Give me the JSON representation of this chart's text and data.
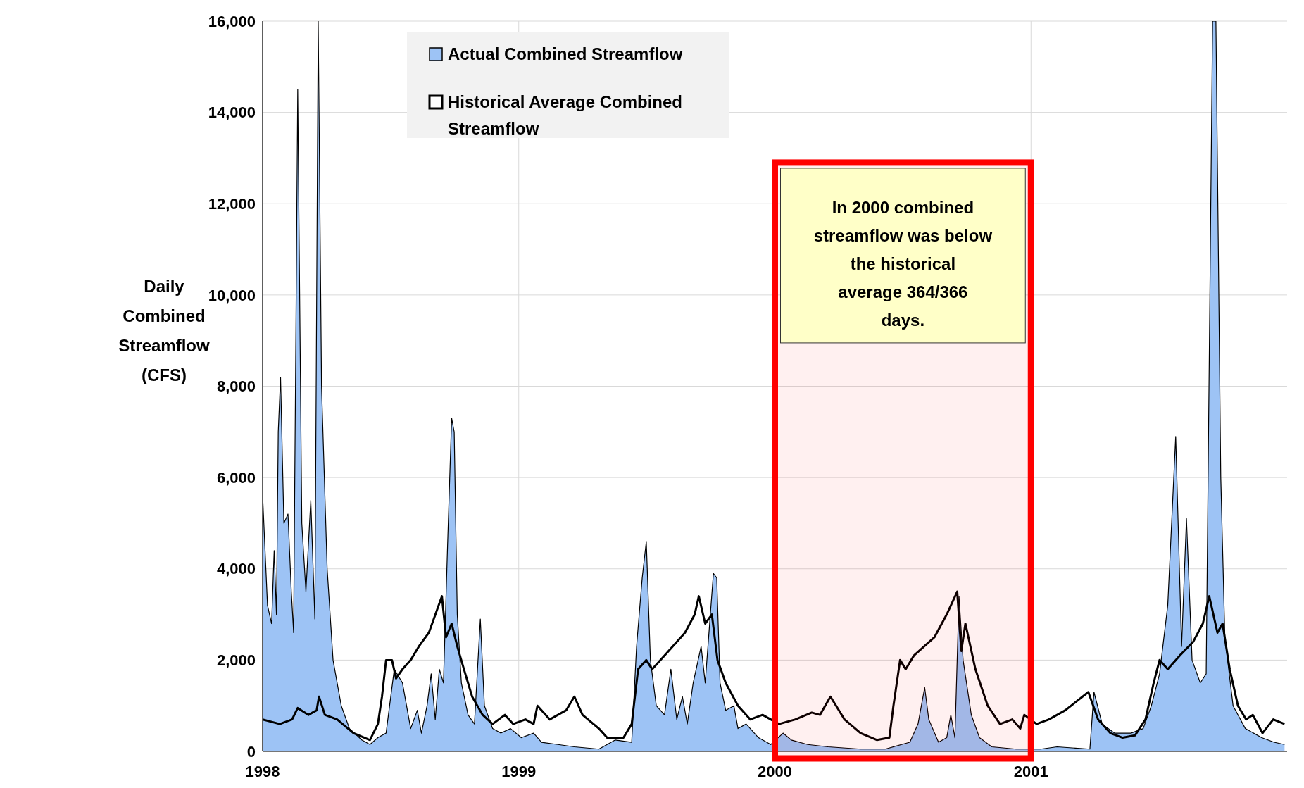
{
  "chart_data": {
    "type": "area",
    "ylabel": "Daily Combined Streamflow (CFS)",
    "xlim": [
      1998,
      2002
    ],
    "xticks": [
      1998,
      1999,
      2000,
      2001
    ],
    "ylim": [
      0,
      16000
    ],
    "yticks": [
      {
        "value": 0,
        "label": "0"
      },
      {
        "value": 2000,
        "label": "2,000"
      },
      {
        "value": 4000,
        "label": "4,000"
      },
      {
        "value": 6000,
        "label": "6,000"
      },
      {
        "value": 8000,
        "label": "8,000"
      },
      {
        "value": 10000,
        "label": "10,000"
      },
      {
        "value": 12000,
        "label": "12,000"
      },
      {
        "value": 14000,
        "label": "14,000"
      },
      {
        "value": 16000,
        "label": "16,000"
      }
    ],
    "grid": true,
    "legend": "top left",
    "series": [
      {
        "name": "Actual Combined Streamflow",
        "color": "#9dc3f5",
        "x": [
          1998.0,
          1998.019,
          1998.035,
          1998.045,
          1998.054,
          1998.061,
          1998.07,
          1998.083,
          1998.099,
          1998.112,
          1998.121,
          1998.137,
          1998.153,
          1998.169,
          1998.188,
          1998.204,
          1998.217,
          1998.23,
          1998.252,
          1998.275,
          1998.307,
          1998.339,
          1998.387,
          1998.419,
          1998.45,
          1998.482,
          1998.514,
          1998.546,
          1998.578,
          1998.604,
          1998.62,
          1998.642,
          1998.658,
          1998.674,
          1998.69,
          1998.706,
          1998.722,
          1998.738,
          1998.748,
          1998.76,
          1998.776,
          1998.802,
          1998.827,
          1998.85,
          1998.866,
          1998.898,
          1998.93,
          1998.968,
          1999.01,
          1999.058,
          1999.089,
          1999.153,
          1999.217,
          1999.313,
          1999.377,
          1999.441,
          1999.46,
          1999.482,
          1999.498,
          1999.514,
          1999.537,
          1999.569,
          1999.594,
          1999.617,
          1999.639,
          1999.658,
          1999.681,
          1999.712,
          1999.728,
          1999.76,
          1999.773,
          1999.786,
          1999.808,
          1999.84,
          1999.856,
          1999.888,
          1999.936,
          1999.984,
          2000.032,
          2000.064,
          2000.128,
          2000.208,
          2000.335,
          2000.431,
          2000.527,
          2000.559,
          2000.585,
          2000.601,
          2000.639,
          2000.671,
          2000.687,
          2000.703,
          2000.719,
          2000.735,
          2000.767,
          2000.799,
          2000.847,
          2000.942,
          2001.038,
          2001.102,
          2001.23,
          2001.246,
          2001.278,
          2001.326,
          2001.39,
          2001.438,
          2001.47,
          2001.502,
          2001.534,
          2001.565,
          2001.588,
          2001.607,
          2001.629,
          2001.661,
          2001.684,
          2001.709,
          2001.722,
          2001.741,
          2001.757,
          2001.789,
          2001.837,
          2001.901,
          2001.949,
          2001.99
        ],
        "values": [
          5600,
          3200,
          2800,
          4400,
          3000,
          7000,
          8200,
          5000,
          5200,
          3500,
          2600,
          14500,
          5000,
          3500,
          5500,
          2900,
          16000,
          8000,
          4000,
          2000,
          1000,
          500,
          250,
          150,
          300,
          400,
          1800,
          1500,
          500,
          900,
          400,
          1000,
          1700,
          700,
          1800,
          1500,
          4500,
          7300,
          7000,
          3000,
          1500,
          800,
          600,
          2900,
          1000,
          500,
          400,
          500,
          300,
          400,
          200,
          150,
          100,
          50,
          250,
          200,
          2300,
          3800,
          4600,
          2000,
          1000,
          800,
          1800,
          700,
          1200,
          600,
          1500,
          2300,
          1500,
          3900,
          3800,
          1500,
          900,
          1000,
          500,
          600,
          300,
          150,
          400,
          250,
          150,
          100,
          50,
          50,
          200,
          600,
          1400,
          700,
          200,
          300,
          800,
          300,
          3400,
          2000,
          800,
          300,
          100,
          50,
          50,
          100,
          50,
          1300,
          600,
          400,
          400,
          500,
          1000,
          1700,
          3200,
          6900,
          2300,
          5100,
          2000,
          1500,
          1700,
          16000,
          16000,
          6000,
          2500,
          1000,
          500,
          300,
          200,
          150
        ]
      },
      {
        "name": "Historical Average Combined Streamflow",
        "type": "line",
        "color": "#000000",
        "x": [
          1998.0,
          1998.067,
          1998.115,
          1998.137,
          1998.179,
          1998.211,
          1998.22,
          1998.243,
          1998.291,
          1998.355,
          1998.419,
          1998.45,
          1998.466,
          1998.482,
          1998.505,
          1998.521,
          1998.546,
          1998.578,
          1998.61,
          1998.649,
          1998.681,
          1998.7,
          1998.716,
          1998.738,
          1998.76,
          1998.786,
          1998.818,
          1998.859,
          1998.898,
          1998.946,
          1998.978,
          1999.026,
          1999.058,
          1999.073,
          1999.121,
          1999.185,
          1999.217,
          1999.249,
          1999.313,
          1999.345,
          1999.409,
          1999.441,
          1999.466,
          1999.498,
          1999.521,
          1999.569,
          1999.649,
          1999.687,
          1999.703,
          1999.728,
          1999.754,
          1999.776,
          1999.808,
          1999.856,
          1999.904,
          1999.952,
          2000.016,
          2000.08,
          2000.144,
          2000.176,
          2000.217,
          2000.272,
          2000.335,
          2000.399,
          2000.447,
          2000.463,
          2000.489,
          2000.511,
          2000.543,
          2000.623,
          2000.671,
          2000.712,
          2000.728,
          2000.744,
          2000.783,
          2000.831,
          2000.879,
          2000.927,
          2000.958,
          2000.974,
          2001.022,
          2001.07,
          2001.134,
          2001.224,
          2001.262,
          2001.31,
          2001.358,
          2001.406,
          2001.447,
          2001.479,
          2001.502,
          2001.534,
          2001.581,
          2001.633,
          2001.671,
          2001.696,
          2001.728,
          2001.748,
          2001.776,
          2001.808,
          2001.84,
          2001.866,
          2001.904,
          2001.946,
          2001.99
        ],
        "values": [
          700,
          600,
          700,
          950,
          800,
          900,
          1200,
          800,
          700,
          400,
          250,
          600,
          1200,
          2000,
          2000,
          1600,
          1800,
          2000,
          2300,
          2600,
          3100,
          3400,
          2500,
          2800,
          2300,
          1800,
          1200,
          800,
          600,
          800,
          600,
          700,
          600,
          1000,
          700,
          900,
          1200,
          800,
          500,
          300,
          300,
          600,
          1800,
          2000,
          1800,
          2100,
          2600,
          3000,
          3400,
          2800,
          3000,
          2000,
          1500,
          1000,
          700,
          800,
          600,
          700,
          850,
          800,
          1200,
          700,
          400,
          250,
          300,
          1000,
          2000,
          1800,
          2100,
          2500,
          3000,
          3500,
          2200,
          2800,
          1800,
          1000,
          600,
          700,
          500,
          800,
          600,
          700,
          900,
          1300,
          700,
          400,
          300,
          350,
          700,
          1500,
          2000,
          1800,
          2100,
          2400,
          2800,
          3400,
          2600,
          2800,
          1800,
          1000,
          700,
          800,
          400,
          700,
          600
        ]
      }
    ],
    "bands": [
      {
        "axis": "x",
        "from": 2000,
        "to": 2001,
        "label": "In 2000 combined streamflow was below the historical average 364/366 days.",
        "color": "#ff0000"
      }
    ]
  }
}
